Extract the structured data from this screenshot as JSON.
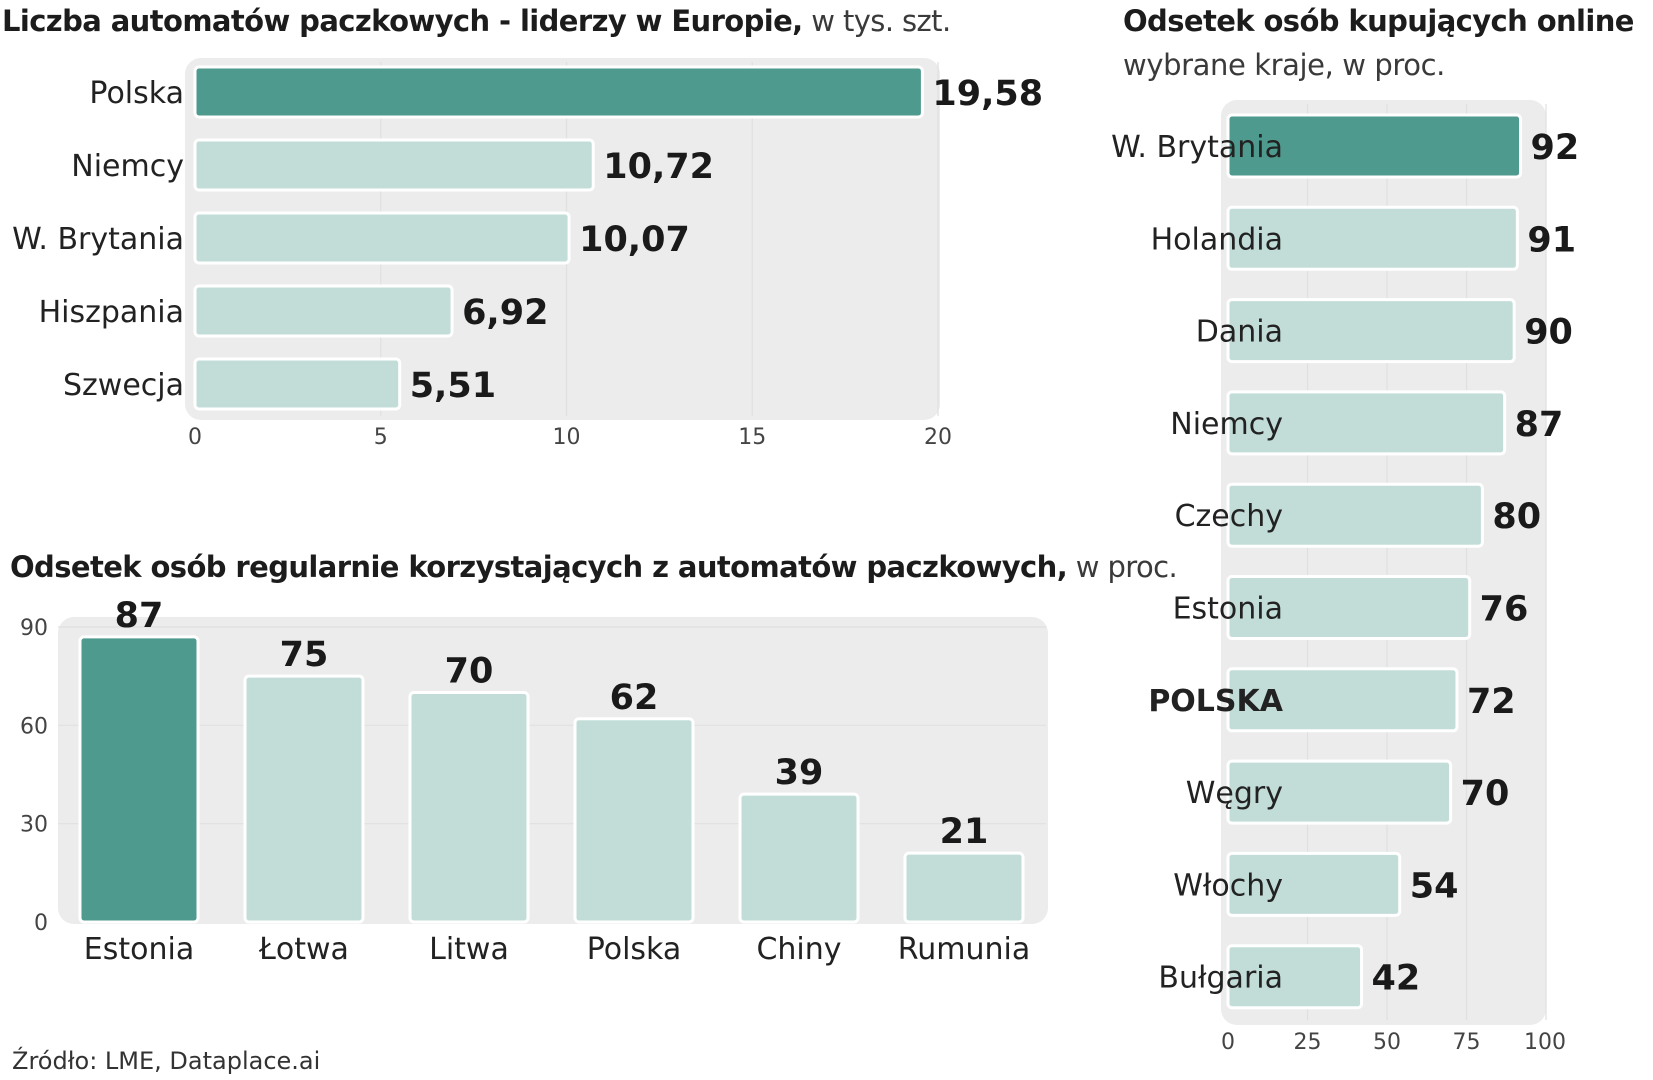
{
  "colors": {
    "highlight": "#4f9a8e",
    "bar": "#c2ddd8",
    "panel": "#ececec",
    "grid": "#e0e0e0",
    "stroke": "#ffffff"
  },
  "chart_data": [
    {
      "type": "bar",
      "orientation": "horizontal",
      "title": "Liczba automatów paczkowych - liderzy w Europie,",
      "unit": "w tys. szt.",
      "categories": [
        "Polska",
        "Niemcy",
        "W. Brytania",
        "Hiszpania",
        "Szwecja"
      ],
      "values": [
        19.58,
        10.72,
        10.07,
        6.92,
        5.51
      ],
      "value_labels": [
        "19,58",
        "10,72",
        "10,07",
        "6,92",
        "5,51"
      ],
      "highlight": [
        "Polska"
      ],
      "xlim": [
        0,
        20
      ],
      "ticks": [
        "0",
        "5",
        "10",
        "15",
        "20"
      ]
    },
    {
      "type": "bar",
      "orientation": "vertical",
      "title": "Odsetek osób regularnie korzystających z automatów paczkowych,",
      "unit": "w proc.",
      "categories": [
        "Estonia",
        "Łotwa",
        "Litwa",
        "Polska",
        "Chiny",
        "Rumunia"
      ],
      "values": [
        87,
        75,
        70,
        62,
        39,
        21
      ],
      "value_labels": [
        "87",
        "75",
        "70",
        "62",
        "39",
        "21"
      ],
      "highlight": [
        "Estonia"
      ],
      "ylim": [
        0,
        90
      ],
      "ticks": [
        "0",
        "30",
        "60",
        "90"
      ]
    },
    {
      "type": "bar",
      "orientation": "horizontal",
      "title": "Odsetek osób kupujących online",
      "subtitle": "wybrane kraje, w proc.",
      "categories": [
        "W. Brytania",
        "Holandia",
        "Dania",
        "Niemcy",
        "Czechy",
        "Estonia",
        "POLSKA",
        "Węgry",
        "Włochy",
        "Bułgaria"
      ],
      "values": [
        92,
        91,
        90,
        87,
        80,
        76,
        72,
        70,
        54,
        42
      ],
      "value_labels": [
        "92",
        "91",
        "90",
        "87",
        "80",
        "76",
        "72",
        "70",
        "54",
        "42"
      ],
      "highlight": [
        "W. Brytania"
      ],
      "bold_labels": [
        "POLSKA"
      ],
      "xlim": [
        0,
        100
      ],
      "ticks": [
        "0",
        "25",
        "50",
        "75",
        "100"
      ]
    }
  ],
  "source": "Źródło: LME, Dataplace.ai"
}
